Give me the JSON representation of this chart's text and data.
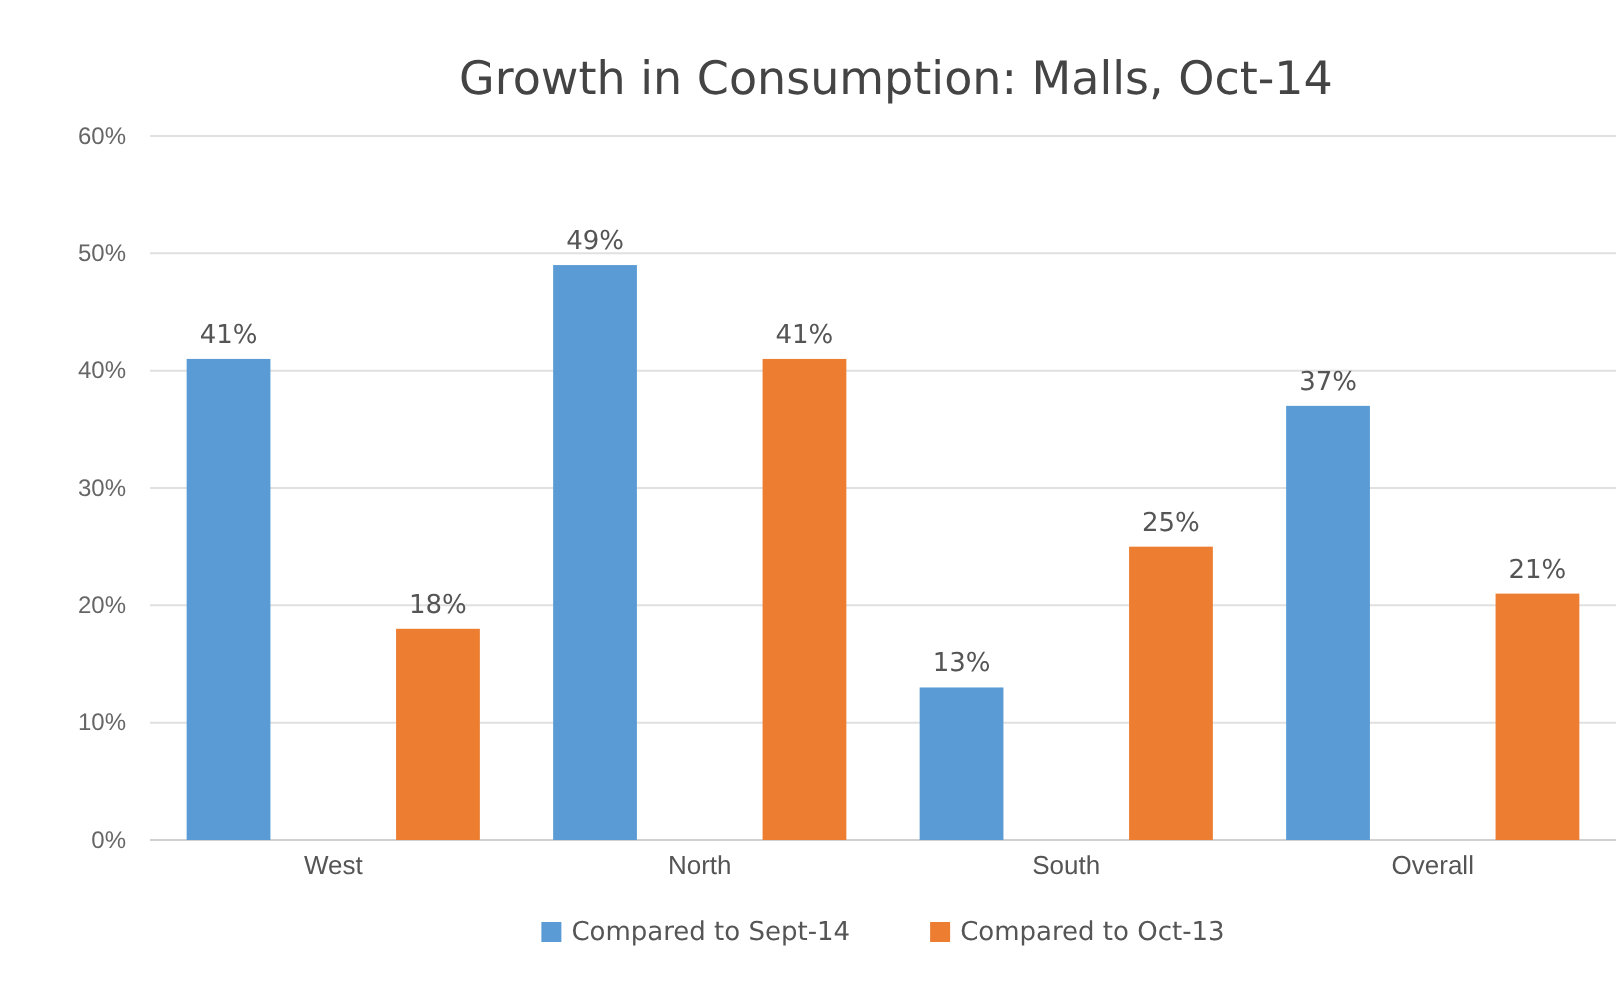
{
  "chart_data": {
    "type": "bar",
    "title": "Growth in Consumption: Malls, Oct-14",
    "categories": [
      "West",
      "North",
      "South",
      "Overall"
    ],
    "series": [
      {
        "name": "Compared to Sept-14",
        "color": "#5b9bd5",
        "values": [
          41,
          49,
          13,
          37
        ],
        "value_labels": [
          "41%",
          "49%",
          "13%",
          "37%"
        ]
      },
      {
        "name": "Compared to Oct-13",
        "color": "#ed7d31",
        "values": [
          18,
          41,
          25,
          21
        ],
        "value_labels": [
          "18%",
          "41%",
          "25%",
          "21%"
        ]
      }
    ],
    "ylim": [
      0,
      60
    ],
    "yticks": [
      {
        "value": 0,
        "label": "0%"
      },
      {
        "value": 10,
        "label": "10%"
      },
      {
        "value": 20,
        "label": "20%"
      },
      {
        "value": 30,
        "label": "30%"
      },
      {
        "value": 40,
        "label": "40%"
      },
      {
        "value": 50,
        "label": "50%"
      },
      {
        "value": 60,
        "label": "60%"
      }
    ],
    "grid": "y",
    "legend": "bottom"
  }
}
